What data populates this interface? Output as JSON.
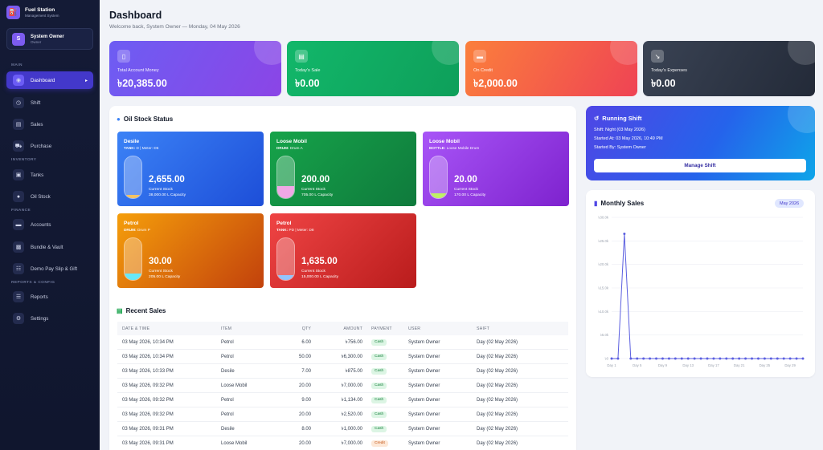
{
  "sidebar": {
    "brand_title": "Fuel Station",
    "brand_sub": "Management System",
    "user_name": "System Owner",
    "user_role": "Owner",
    "sections": [
      "MAIN",
      "INVENTORY",
      "FINANCE",
      "REPORTS & CONFIG"
    ],
    "items": [
      {
        "label": "Dashboard",
        "icon": "dashboard-icon",
        "active": true
      },
      {
        "label": "Shift",
        "icon": "clock-icon"
      },
      {
        "label": "Sales",
        "icon": "receipt-icon"
      },
      {
        "label": "Purchase",
        "icon": "truck-icon"
      },
      {
        "label": "Tanks",
        "icon": "tank-icon"
      },
      {
        "label": "Oil Stock",
        "icon": "droplet-icon"
      },
      {
        "label": "Accounts",
        "icon": "wallet-icon"
      },
      {
        "label": "Bundle & Vault",
        "icon": "vault-icon"
      },
      {
        "label": "Demo Pay Slip & Gift",
        "icon": "document-icon"
      },
      {
        "label": "Reports",
        "icon": "chart-icon"
      },
      {
        "label": "Settings",
        "icon": "gear-icon"
      }
    ]
  },
  "header": {
    "title": "Dashboard",
    "subtitle": "Welcome back, System Owner — Monday, 04 May 2026"
  },
  "stats": [
    {
      "label": "Total Account Money",
      "value": "৳20,385.00",
      "icon": "money-icon",
      "color_from": "#6d5df3",
      "color_to": "#8b45e6"
    },
    {
      "label": "Today's Sale",
      "value": "৳0.00",
      "icon": "cash-icon",
      "color_from": "#12b76a",
      "color_to": "#0e9f5a"
    },
    {
      "label": "On Credit",
      "value": "৳2,000.00",
      "icon": "card-icon",
      "color_from": "#fb7f3c",
      "color_to": "#ef4354"
    },
    {
      "label": "Today's Expenses",
      "value": "৳0.00",
      "icon": "trend-down-icon",
      "color_from": "#3a4354",
      "color_to": "#232a38"
    }
  ],
  "oil_stock": {
    "title": "Oil Stock Status",
    "stock_label": "Current Stock",
    "tanks": [
      {
        "name": "Desile",
        "meta_key": "TANK:",
        "meta_val": "D | Meter: D6",
        "stock": "2,655.00",
        "capacity": "38,000.00 L Capacity",
        "fill": 0.069,
        "bg_from": "#3b82f6",
        "bg_to": "#1d4ed8",
        "fill_color": "#f5c361"
      },
      {
        "name": "Loose Mobil",
        "meta_key": "DRUM:",
        "meta_val": "Drum A",
        "stock": "200.00",
        "capacity": "705.00 L Capacity",
        "fill": 0.28,
        "bg_from": "#16a34a",
        "bg_to": "#0f7a3c",
        "fill_color": "#f0a8e6"
      },
      {
        "name": "Loose Mobil",
        "meta_key": "BOTTLE:",
        "meta_val": "Loose Mobile Drum",
        "stock": "20.00",
        "capacity": "170.00 L Capacity",
        "fill": 0.117,
        "bg_from": "#a855f7",
        "bg_to": "#7e22ce",
        "fill_color": "#bef264"
      },
      {
        "name": "Petrol",
        "meta_key": "DRUM:",
        "meta_val": "Drum P",
        "stock": "30.00",
        "capacity": "205.00 L Capacity",
        "fill": 0.146,
        "bg_from": "#f59e0b",
        "bg_to": "#c2410c",
        "fill_color": "#67e8f9"
      },
      {
        "name": "Petrol",
        "meta_key": "TANK:",
        "meta_val": "PD | Meter: D8",
        "stock": "1,635.00",
        "capacity": "15,000.00 L Capacity",
        "fill": 0.109,
        "bg_from": "#ef4444",
        "bg_to": "#b91c1c",
        "fill_color": "#93c5fd"
      }
    ]
  },
  "recent_sales": {
    "title": "Recent Sales",
    "columns": [
      "DATE & TIME",
      "ITEM",
      "QTY",
      "AMOUNT",
      "PAYMENT",
      "USER",
      "SHIFT"
    ],
    "rows": [
      [
        "03 May 2026, 10:34 PM",
        "Petrol",
        "6.00",
        "৳756.00",
        "Cash",
        "System Owner",
        "Day (02 May 2026)"
      ],
      [
        "03 May 2026, 10:34 PM",
        "Petrol",
        "50.00",
        "৳6,300.00",
        "Cash",
        "System Owner",
        "Day (02 May 2026)"
      ],
      [
        "03 May 2026, 10:33 PM",
        "Desile",
        "7.00",
        "৳875.00",
        "Cash",
        "System Owner",
        "Day (02 May 2026)"
      ],
      [
        "03 May 2026, 09:32 PM",
        "Loose Mobil",
        "20.00",
        "৳7,000.00",
        "Cash",
        "System Owner",
        "Day (02 May 2026)"
      ],
      [
        "03 May 2026, 09:32 PM",
        "Petrol",
        "9.00",
        "৳1,134.00",
        "Cash",
        "System Owner",
        "Day (02 May 2026)"
      ],
      [
        "03 May 2026, 09:32 PM",
        "Petrol",
        "20.00",
        "৳2,520.00",
        "Cash",
        "System Owner",
        "Day (02 May 2026)"
      ],
      [
        "03 May 2026, 09:31 PM",
        "Desile",
        "8.00",
        "৳1,000.00",
        "Cash",
        "System Owner",
        "Day (02 May 2026)"
      ],
      [
        "03 May 2026, 09:31 PM",
        "Loose Mobil",
        "20.00",
        "৳7,000.00",
        "Credit",
        "System Owner",
        "Day (02 May 2026)"
      ]
    ]
  },
  "running_shift": {
    "title": "Running Shift",
    "shift": "Shift: Night (03 May 2026)",
    "started_at": "Started At: 03 May 2026, 10:49 PM",
    "started_by": "Started By: System Owner",
    "button": "Manage Shift"
  },
  "monthly_sales": {
    "title": "Monthly Sales",
    "badge": "May 2026"
  },
  "chart_data": {
    "type": "line",
    "title": "Monthly Sales",
    "x": [
      "Day 1",
      "Day 2",
      "Day 3",
      "Day 4",
      "Day 5",
      "Day 6",
      "Day 7",
      "Day 8",
      "Day 9",
      "Day 10",
      "Day 11",
      "Day 12",
      "Day 13",
      "Day 14",
      "Day 15",
      "Day 16",
      "Day 17",
      "Day 18",
      "Day 19",
      "Day 20",
      "Day 21",
      "Day 22",
      "Day 23",
      "Day 24",
      "Day 25",
      "Day 26",
      "Day 27",
      "Day 28",
      "Day 29",
      "Day 30",
      "Day 31"
    ],
    "x_tick_labels": [
      "Day 1",
      "Day 5",
      "Day 9",
      "Day 13",
      "Day 17",
      "Day 21",
      "Day 25",
      "Day 29"
    ],
    "y_tick_labels": [
      "৳0",
      "৳5.0k",
      "৳10.0k",
      "৳15.0k",
      "৳20.0k",
      "৳25.0k",
      "৳30.0k"
    ],
    "ylim": [
      0,
      30000
    ],
    "series": [
      {
        "values": [
          0,
          0,
          26500,
          0,
          0,
          0,
          0,
          0,
          0,
          0,
          0,
          0,
          0,
          0,
          0,
          0,
          0,
          0,
          0,
          0,
          0,
          0,
          0,
          0,
          0,
          0,
          0,
          0,
          0,
          0,
          0
        ],
        "color": "#5b5fe0"
      }
    ],
    "grid": true
  }
}
